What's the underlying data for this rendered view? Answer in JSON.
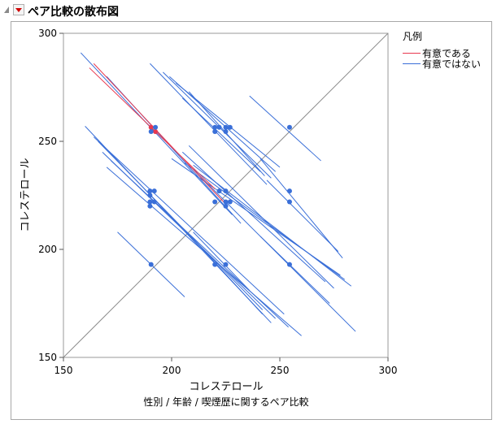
{
  "title": "ペア比較の散布図",
  "chart_data": {
    "type": "scatter",
    "xlabel": "コレステロール",
    "ylabel": "コレステロール",
    "subtitle": "性別 / 年齢 / 喫煙歴に関するペア比較",
    "xlim": [
      150,
      300
    ],
    "ylim": [
      150,
      300
    ],
    "x_ticks": [
      "150",
      "200",
      "250",
      "300"
    ],
    "y_ticks": [
      "150",
      "200",
      "250",
      "300"
    ],
    "diagonal": true,
    "legend": {
      "title": "凡例",
      "position": "right",
      "items": [
        {
          "label": "有意である",
          "color": "#e8384f"
        },
        {
          "label": "有意ではない",
          "color": "#3a6fd8"
        }
      ]
    },
    "segments": [
      {
        "x": 190.5,
        "y": 256.5,
        "x1": 162,
        "y1": 284,
        "x2": 220,
        "y2": 228,
        "sig": true
      },
      {
        "x": 192.5,
        "y": 254.5,
        "x1": 164,
        "y1": 286,
        "x2": 224,
        "y2": 222,
        "sig": true
      },
      {
        "x": 190.5,
        "y": 254.5,
        "x1": 158,
        "y1": 291,
        "x2": 228,
        "y2": 216,
        "sig": false
      },
      {
        "x": 192.5,
        "y": 256.5,
        "x1": 170,
        "y1": 280,
        "x2": 232,
        "y2": 212,
        "sig": false
      },
      {
        "x": 220,
        "y": 256.5,
        "x1": 190,
        "y1": 286,
        "x2": 244,
        "y2": 230,
        "sig": false
      },
      {
        "x": 222,
        "y": 256.5,
        "x1": 196,
        "y1": 282,
        "x2": 246,
        "y2": 233,
        "sig": false
      },
      {
        "x": 225,
        "y": 256.5,
        "x1": 199,
        "y1": 280,
        "x2": 248,
        "y2": 236,
        "sig": false
      },
      {
        "x": 227,
        "y": 256.5,
        "x1": 202,
        "y1": 277,
        "x2": 250,
        "y2": 238,
        "sig": false
      },
      {
        "x": 220,
        "y": 254.5,
        "x1": 205,
        "y1": 270,
        "x2": 241,
        "y2": 236,
        "sig": false
      },
      {
        "x": 225,
        "y": 254.5,
        "x1": 208,
        "y1": 273,
        "x2": 243,
        "y2": 234,
        "sig": false
      },
      {
        "x": 254.5,
        "y": 256.5,
        "x1": 236,
        "y1": 271,
        "x2": 269,
        "y2": 241,
        "sig": false
      },
      {
        "x": 190,
        "y": 227,
        "x1": 160,
        "y1": 257,
        "x2": 246,
        "y2": 166,
        "sig": false
      },
      {
        "x": 192,
        "y": 227,
        "x1": 164,
        "y1": 252,
        "x2": 252,
        "y2": 170,
        "sig": false
      },
      {
        "x": 190,
        "y": 225,
        "x1": 166,
        "y1": 250,
        "x2": 242,
        "y2": 172,
        "sig": false
      },
      {
        "x": 190,
        "y": 222,
        "x1": 168,
        "y1": 245,
        "x2": 248,
        "y2": 168,
        "sig": false
      },
      {
        "x": 192,
        "y": 222,
        "x1": 172,
        "y1": 241,
        "x2": 254,
        "y2": 164,
        "sig": false
      },
      {
        "x": 190,
        "y": 220,
        "x1": 170,
        "y1": 238,
        "x2": 260,
        "y2": 160,
        "sig": false
      },
      {
        "x": 222,
        "y": 227,
        "x1": 205,
        "y1": 245,
        "x2": 271,
        "y2": 185,
        "sig": false
      },
      {
        "x": 225,
        "y": 227,
        "x1": 208,
        "y1": 248,
        "x2": 275,
        "y2": 182,
        "sig": false
      },
      {
        "x": 220,
        "y": 222,
        "x1": 200,
        "y1": 242,
        "x2": 278,
        "y2": 188,
        "sig": false
      },
      {
        "x": 225,
        "y": 222,
        "x1": 206,
        "y1": 240,
        "x2": 280,
        "y2": 186,
        "sig": false
      },
      {
        "x": 227,
        "y": 222,
        "x1": 210,
        "y1": 239,
        "x2": 283,
        "y2": 183,
        "sig": false
      },
      {
        "x": 225,
        "y": 220,
        "x1": 211,
        "y1": 236,
        "x2": 285,
        "y2": 162,
        "sig": false
      },
      {
        "x": 254.5,
        "y": 227,
        "x1": 241,
        "y1": 242,
        "x2": 279,
        "y2": 196,
        "sig": false
      },
      {
        "x": 254.5,
        "y": 222,
        "x1": 244,
        "y1": 232,
        "x2": 277,
        "y2": 199,
        "sig": false
      },
      {
        "x": 190.5,
        "y": 193,
        "x1": 175,
        "y1": 208,
        "x2": 206,
        "y2": 178,
        "sig": false
      },
      {
        "x": 220,
        "y": 193,
        "x1": 208,
        "y1": 207,
        "x2": 242,
        "y2": 170,
        "sig": false
      },
      {
        "x": 225,
        "y": 193,
        "x1": 210,
        "y1": 208,
        "x2": 236,
        "y2": 181,
        "sig": false
      },
      {
        "x": 254.5,
        "y": 193,
        "x1": 241,
        "y1": 206,
        "x2": 273,
        "y2": 175,
        "sig": false
      }
    ]
  }
}
